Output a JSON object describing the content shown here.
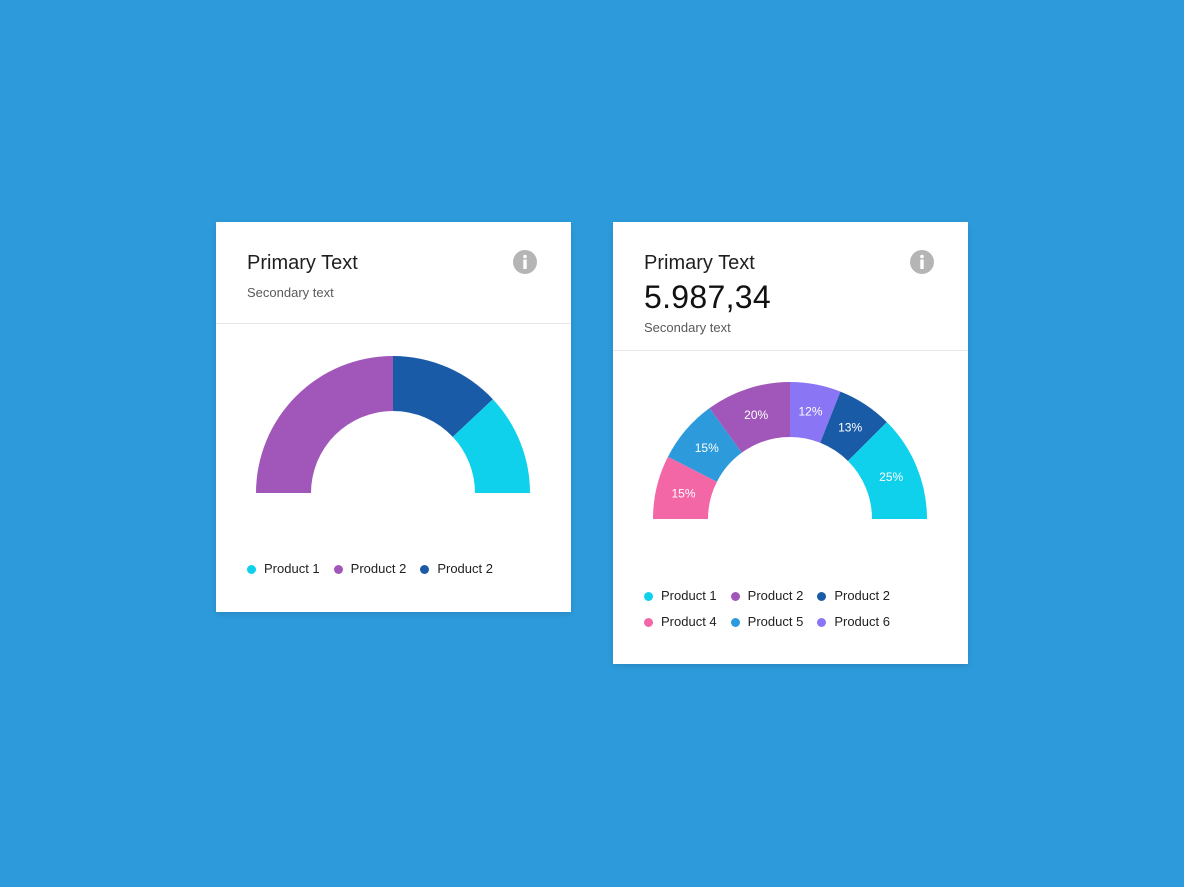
{
  "cards": [
    {
      "title": "Primary Text",
      "subtitle": "Secondary text",
      "icon": "info-icon",
      "chart_data": {
        "type": "pie",
        "variant": "half-donut",
        "categories": [
          "Product 2",
          "Product 2",
          "Product 1"
        ],
        "values": [
          50,
          26,
          24
        ],
        "colors": [
          "#a157b9",
          "#1a5ba8",
          "#10d1ec"
        ],
        "show_labels": false
      },
      "legend": [
        {
          "label": "Product 1",
          "color": "#10d1ec"
        },
        {
          "label": "Product 2",
          "color": "#a157b9"
        },
        {
          "label": "Product 2",
          "color": "#1a5ba8"
        }
      ]
    },
    {
      "title": "Primary Text",
      "value": "5.987,34",
      "subtitle": "Secondary text",
      "icon": "info-icon",
      "chart_data": {
        "type": "pie",
        "variant": "half-donut",
        "categories": [
          "Product 4",
          "Product 5",
          "Product 2",
          "Product 6",
          "Product 2",
          "Product 1"
        ],
        "values": [
          15,
          15,
          20,
          12,
          13,
          25
        ],
        "labels": [
          "15%",
          "15%",
          "20%",
          "12%",
          "13%",
          "25%"
        ],
        "colors": [
          "#f467a7",
          "#2d9bdb",
          "#a157b9",
          "#8a75f5",
          "#1a5ba8",
          "#10d1ec"
        ],
        "show_labels": true
      },
      "legend": [
        {
          "label": "Product 1",
          "color": "#10d1ec"
        },
        {
          "label": "Product 2",
          "color": "#a157b9"
        },
        {
          "label": "Product 2",
          "color": "#1a5ba8"
        },
        {
          "label": "Product 4",
          "color": "#f467a7"
        },
        {
          "label": "Product 5",
          "color": "#2d9bdb"
        },
        {
          "label": "Product 6",
          "color": "#8a75f5"
        }
      ]
    }
  ]
}
